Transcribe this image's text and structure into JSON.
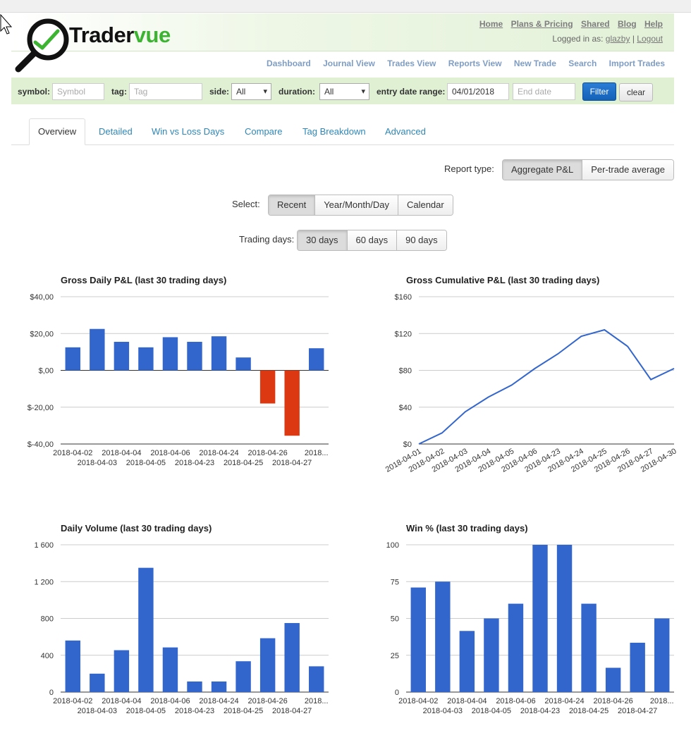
{
  "brand": {
    "part1": "Trader",
    "part2": "vue"
  },
  "top_links": [
    "Home",
    "Plans & Pricing",
    "Shared",
    "Blog",
    "Help"
  ],
  "login": {
    "prefix": "Logged in as:",
    "user": "glazby",
    "separator": "|",
    "logout": "Logout"
  },
  "main_nav": [
    "Dashboard",
    "Journal View",
    "Trades View",
    "Reports View",
    "New Trade",
    "Search",
    "Import Trades"
  ],
  "filters": {
    "symbol_label": "symbol:",
    "symbol_placeholder": "Symbol",
    "tag_label": "tag:",
    "tag_placeholder": "Tag",
    "side_label": "side:",
    "side_value": "All",
    "duration_label": "duration:",
    "duration_value": "All",
    "date_label": "entry date range:",
    "start_date": "04/01/2018",
    "end_placeholder": "End date",
    "filter_button": "Filter",
    "clear_button": "clear"
  },
  "tabs": [
    "Overview",
    "Detailed",
    "Win vs Loss Days",
    "Compare",
    "Tag Breakdown",
    "Advanced"
  ],
  "report_type": {
    "label": "Report type:",
    "options": [
      "Aggregate P&L",
      "Per-trade average"
    ],
    "selected": 0
  },
  "select": {
    "label": "Select:",
    "options": [
      "Recent",
      "Year/Month/Day",
      "Calendar"
    ],
    "selected": 0
  },
  "trading_days": {
    "label": "Trading days:",
    "options": [
      "30 days",
      "60 days",
      "90 days"
    ],
    "selected": 0
  },
  "colors": {
    "bar_blue": "#3366cc",
    "bar_red": "#dc3912",
    "accent_green": "#3cb431"
  },
  "chart_data": [
    {
      "type": "bar",
      "title": "Gross Daily P&L (last 30 trading days)",
      "categories": [
        "2018-04-02",
        "2018-04-03",
        "2018-04-04",
        "2018-04-05",
        "2018-04-06",
        "2018-04-23",
        "2018-04-24",
        "2018-04-25",
        "2018-04-26",
        "2018-04-27",
        "2018..."
      ],
      "values": [
        12.5,
        22.5,
        15.5,
        12.5,
        18,
        15.5,
        18.5,
        7,
        -18,
        -35.5,
        12
      ],
      "ylim": [
        -40,
        40
      ],
      "yticks": [
        -40,
        -20,
        0,
        20,
        40
      ],
      "ytick_labels": [
        "$-40,00",
        "$-20,00",
        "$,00",
        "$20,00",
        "$40,00"
      ],
      "negative_color": "#dc3912",
      "positive_color": "#3366cc",
      "grid": true
    },
    {
      "type": "line",
      "title": "Gross Cumulative P&L (last 30 trading days)",
      "categories": [
        "2018-04-01",
        "2018-04-02",
        "2018-04-03",
        "2018-04-04",
        "2018-04-05",
        "2018-04-06",
        "2018-04-23",
        "2018-04-24",
        "2018-04-25",
        "2018-04-26",
        "2018-04-27",
        "2018-04-30"
      ],
      "values": [
        0,
        12,
        35,
        51,
        64,
        82,
        98,
        117,
        124,
        106,
        70,
        82
      ],
      "ylim": [
        0,
        160
      ],
      "yticks": [
        0,
        40,
        80,
        120,
        160
      ],
      "ytick_labels": [
        "$0",
        "$40",
        "$80",
        "$120",
        "$160"
      ],
      "grid": true
    },
    {
      "type": "bar",
      "title": "Daily Volume (last 30 trading days)",
      "categories": [
        "2018-04-02",
        "2018-04-03",
        "2018-04-04",
        "2018-04-05",
        "2018-04-06",
        "2018-04-23",
        "2018-04-24",
        "2018-04-25",
        "2018-04-26",
        "2018-04-27",
        "2018..."
      ],
      "values": [
        560,
        200,
        455,
        1350,
        485,
        115,
        115,
        335,
        585,
        750,
        280
      ],
      "ylim": [
        0,
        1600
      ],
      "yticks": [
        0,
        400,
        800,
        1200,
        1600
      ],
      "ytick_labels": [
        "0",
        "400",
        "800",
        "1 200",
        "1 600"
      ],
      "grid": true
    },
    {
      "type": "bar",
      "title": "Win % (last 30 trading days)",
      "categories": [
        "2018-04-02",
        "2018-04-03",
        "2018-04-04",
        "2018-04-05",
        "2018-04-06",
        "2018-04-23",
        "2018-04-24",
        "2018-04-25",
        "2018-04-26",
        "2018-04-27",
        "2018..."
      ],
      "values": [
        71,
        75,
        41.5,
        50,
        60,
        100,
        100,
        60,
        16.5,
        33.5,
        50
      ],
      "ylim": [
        0,
        100
      ],
      "yticks": [
        0,
        25,
        50,
        75,
        100
      ],
      "ytick_labels": [
        "0",
        "25",
        "50",
        "75",
        "100"
      ],
      "grid": true
    }
  ]
}
